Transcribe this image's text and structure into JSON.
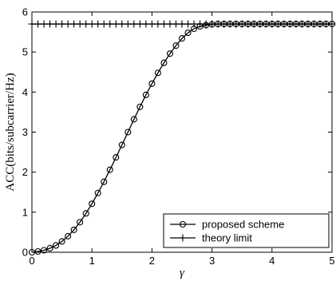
{
  "chart_data": {
    "type": "line",
    "xlabel": "γ",
    "ylabel": "ACC(bits/subcarrier/Hz)",
    "xlim": [
      0,
      5
    ],
    "ylim": [
      0,
      6
    ],
    "xticks": [
      "0",
      "1",
      "2",
      "3",
      "4",
      "5"
    ],
    "yticks": [
      "0",
      "1",
      "2",
      "3",
      "4",
      "5",
      "6"
    ],
    "grid": false,
    "legend_position": "bottom-right",
    "x": [
      0,
      0.1,
      0.2,
      0.3,
      0.4,
      0.5,
      0.6,
      0.7,
      0.8,
      0.9,
      1.0,
      1.1,
      1.2,
      1.3,
      1.4,
      1.5,
      1.6,
      1.7,
      1.8,
      1.9,
      2.0,
      2.1,
      2.2,
      2.3,
      2.4,
      2.5,
      2.6,
      2.7,
      2.8,
      2.9,
      3.0,
      3.1,
      3.2,
      3.3,
      3.4,
      3.5,
      3.6,
      3.7,
      3.8,
      3.9,
      4.0,
      4.1,
      4.2,
      4.3,
      4.4,
      4.5,
      4.6,
      4.7,
      4.8,
      4.9,
      5.0
    ],
    "series": [
      {
        "name": "proposed scheme",
        "marker": "circle",
        "values": [
          0.0,
          0.02,
          0.05,
          0.1,
          0.17,
          0.27,
          0.4,
          0.56,
          0.75,
          0.97,
          1.21,
          1.48,
          1.76,
          2.06,
          2.37,
          2.68,
          3.0,
          3.32,
          3.63,
          3.93,
          4.21,
          4.48,
          4.73,
          4.96,
          5.16,
          5.34,
          5.48,
          5.58,
          5.64,
          5.67,
          5.69,
          5.7,
          5.7,
          5.7,
          5.7,
          5.7,
          5.7,
          5.7,
          5.7,
          5.7,
          5.7,
          5.7,
          5.7,
          5.7,
          5.7,
          5.7,
          5.7,
          5.7,
          5.7,
          5.7,
          5.7
        ]
      },
      {
        "name": "theory limit",
        "marker": "plus",
        "values": [
          5.7,
          5.7,
          5.7,
          5.7,
          5.7,
          5.7,
          5.7,
          5.7,
          5.7,
          5.7,
          5.7,
          5.7,
          5.7,
          5.7,
          5.7,
          5.7,
          5.7,
          5.7,
          5.7,
          5.7,
          5.7,
          5.7,
          5.7,
          5.7,
          5.7,
          5.7,
          5.7,
          5.7,
          5.7,
          5.7,
          5.7,
          5.7,
          5.7,
          5.7,
          5.7,
          5.7,
          5.7,
          5.7,
          5.7,
          5.7,
          5.7,
          5.7,
          5.7,
          5.7,
          5.7,
          5.7,
          5.7,
          5.7,
          5.7,
          5.7,
          5.7
        ]
      }
    ]
  }
}
